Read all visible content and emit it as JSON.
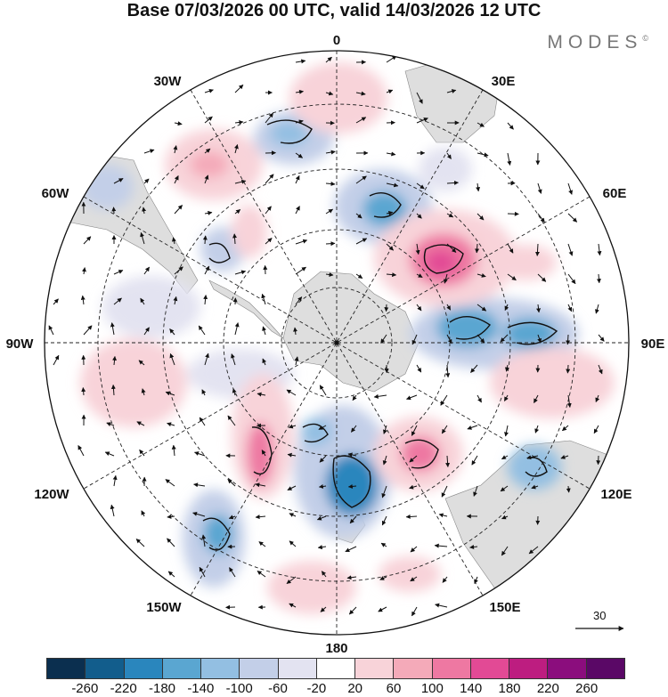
{
  "header": {
    "title": "Base 07/03/2026 00 UTC, valid 14/03/2026 12 UTC",
    "brand": "MODES",
    "brand_mark": "©"
  },
  "map": {
    "projection": "south polar stereographic",
    "longitude_labels": {
      "top": "0",
      "top_right": "30E",
      "right_upper": "60E",
      "right": "90E",
      "right_lower": "120E",
      "bottom_right": "150E",
      "bottom": "180",
      "bottom_left": "150W",
      "left_lower": "120W",
      "left": "90W",
      "left_upper": "60W",
      "top_left": "30W"
    },
    "reference_vector": "30"
  },
  "colorbar": {
    "tick_labels": [
      "-260",
      "-220",
      "-180",
      "-140",
      "-100",
      "-60",
      "-20",
      "20",
      "60",
      "100",
      "140",
      "180",
      "220",
      "260"
    ],
    "colors": [
      "#0b2f4f",
      "#125d8c",
      "#2a86bd",
      "#5aa6d1",
      "#93bfe2",
      "#c3cfe8",
      "#e3e3f1",
      "#ffffff",
      "#f8d3d9",
      "#f4aab9",
      "#ee78a2",
      "#e24a95",
      "#bd1d80",
      "#8b0d7d",
      "#5a0866"
    ]
  }
}
